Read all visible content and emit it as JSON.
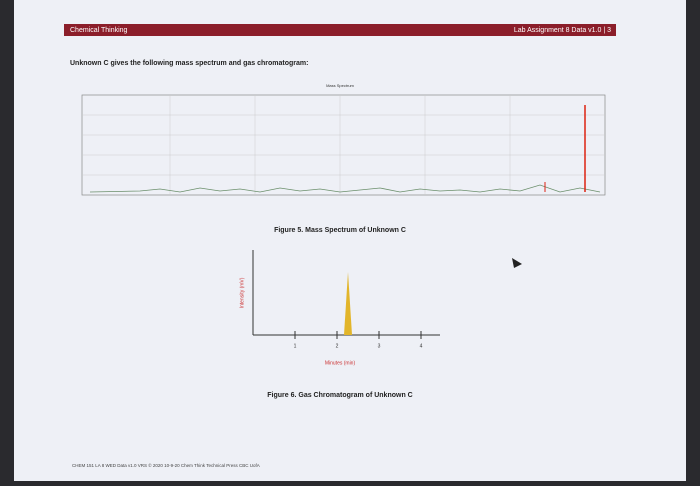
{
  "header": {
    "left": "Chemical Thinking",
    "right": "Lab Assignment 8 Data v1.0 | 3"
  },
  "intro": "Unknown C gives the following mass spectrum and gas chromatogram:",
  "figure5": {
    "title": "Mass Spectrum",
    "caption": "Figure 5. Mass Spectrum of Unknown C"
  },
  "figure6": {
    "y_label": "Intensity (mV)",
    "x_label": "Minutes (min)",
    "xticks": [
      "1",
      "2",
      "3",
      "4"
    ],
    "caption": "Figure 6. Gas Chromatogram of Unknown C"
  },
  "footer": "CHEM 151 LA 8 WED Data v1.0 VRS © 2020 10-9-20 Chem Think Technical Press CBC UofA"
}
